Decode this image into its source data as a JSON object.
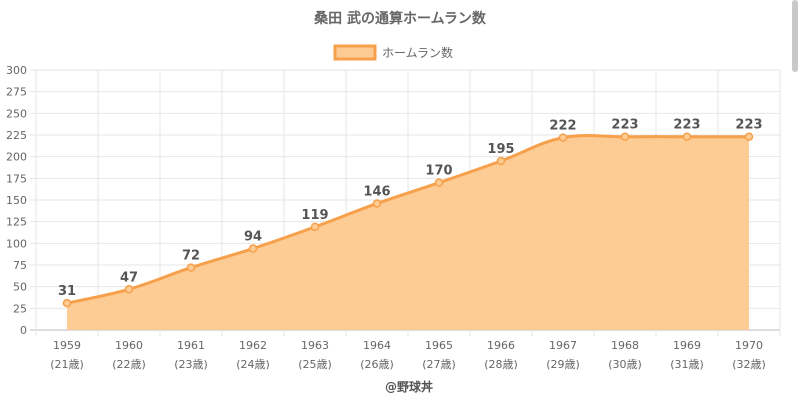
{
  "chart_data": {
    "type": "area",
    "title": "桑田 武の通算ホームラン数",
    "legend": {
      "label": "ホームラン数",
      "position": "top-center"
    },
    "categories": [
      "1959",
      "1960",
      "1961",
      "1962",
      "1963",
      "1964",
      "1965",
      "1966",
      "1967",
      "1968",
      "1969",
      "1970"
    ],
    "age_labels": [
      "(21歳)",
      "(22歳)",
      "(23歳)",
      "(24歳)",
      "(25歳)",
      "(26歳)",
      "(27歳)",
      "(28歳)",
      "(29歳)",
      "(30歳)",
      "(31歳)",
      "(32歳)"
    ],
    "series": [
      {
        "name": "ホームラン数",
        "values": [
          31,
          47,
          72,
          94,
          119,
          146,
          170,
          195,
          222,
          223,
          223,
          223
        ]
      }
    ],
    "ylim": [
      0,
      300
    ],
    "yticks": [
      0,
      25,
      50,
      75,
      100,
      125,
      150,
      175,
      200,
      225,
      250,
      275,
      300
    ],
    "grid": true,
    "colors": {
      "line": "#f7a04b",
      "fill": "#fccc94",
      "grid": "#e6e6e6"
    }
  },
  "credit": "@野球丼"
}
